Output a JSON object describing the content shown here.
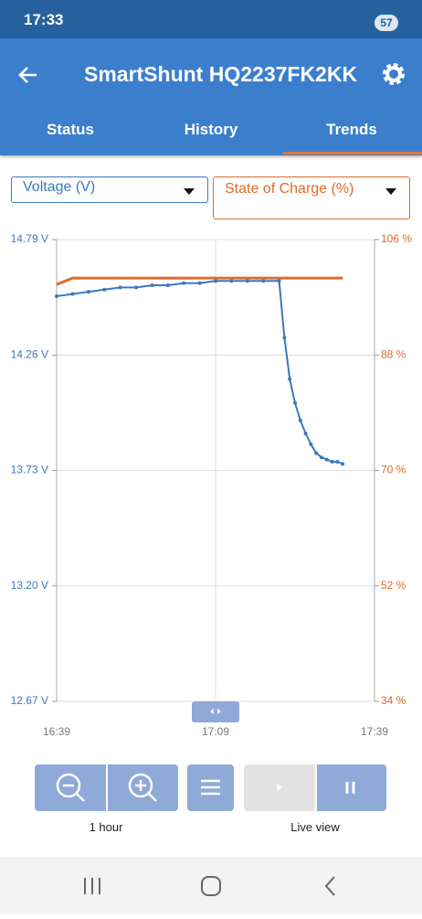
{
  "status_bar": {
    "time": "17:33",
    "battery": "57"
  },
  "header": {
    "title": "SmartShunt HQ2237FK2KK"
  },
  "tabs": [
    "Status",
    "History",
    "Trends"
  ],
  "chart": {
    "type": "line",
    "x": [
      "16:39",
      "16:42",
      "16:45",
      "16:48",
      "16:51",
      "16:54",
      "16:57",
      "17:00",
      "17:03",
      "17:06",
      "17:09",
      "17:12",
      "17:15",
      "17:18",
      "17:21",
      "17:22",
      "17:23",
      "17:24",
      "17:25",
      "17:26",
      "17:27",
      "17:28",
      "17:29",
      "17:30",
      "17:31",
      "17:32",
      "17:33"
    ],
    "xlim": [
      "16:39",
      "17:39"
    ],
    "xticks": [
      "16:39",
      "17:09",
      "17:39"
    ],
    "ylim": [
      12.67,
      14.79
    ],
    "yticks": [
      {
        "value": 12.67,
        "label": "12.67 V"
      },
      {
        "value": 13.2,
        "label": "13.20 V"
      },
      {
        "value": 13.73,
        "label": "13.73 V"
      },
      {
        "value": 14.26,
        "label": "14.26 V"
      },
      {
        "value": 14.79,
        "label": "14.79 V"
      }
    ],
    "y2lim": [
      34,
      106
    ],
    "y2ticks": [
      {
        "value": 34,
        "label": "34 %"
      },
      {
        "value": 52,
        "label": "52 %"
      },
      {
        "value": 70,
        "label": "70 %"
      },
      {
        "value": 88,
        "label": "88 %"
      },
      {
        "value": 106,
        "label": "106 %"
      }
    ],
    "grid": true,
    "series": [
      {
        "name": "Voltage (V)",
        "color": "#3a78c0",
        "values": [
          14.53,
          14.54,
          14.55,
          14.56,
          14.57,
          14.57,
          14.58,
          14.58,
          14.59,
          14.59,
          14.6,
          14.6,
          14.6,
          14.6,
          14.6,
          14.34,
          14.15,
          14.04,
          13.96,
          13.9,
          13.85,
          13.81,
          13.79,
          13.78,
          13.77,
          13.77,
          13.76
        ]
      },
      {
        "name": "State of Charge (%)",
        "color": "#e06a2c",
        "axis": "y2",
        "values": [
          99,
          100,
          100,
          100,
          100,
          100,
          100,
          100,
          100,
          100,
          100,
          100,
          100,
          100,
          100,
          100,
          100,
          100,
          100,
          100,
          100,
          100,
          100,
          100,
          100,
          100,
          100
        ]
      }
    ]
  },
  "controls": {
    "zoom_label": "1 hour",
    "view_label": "Live view"
  }
}
